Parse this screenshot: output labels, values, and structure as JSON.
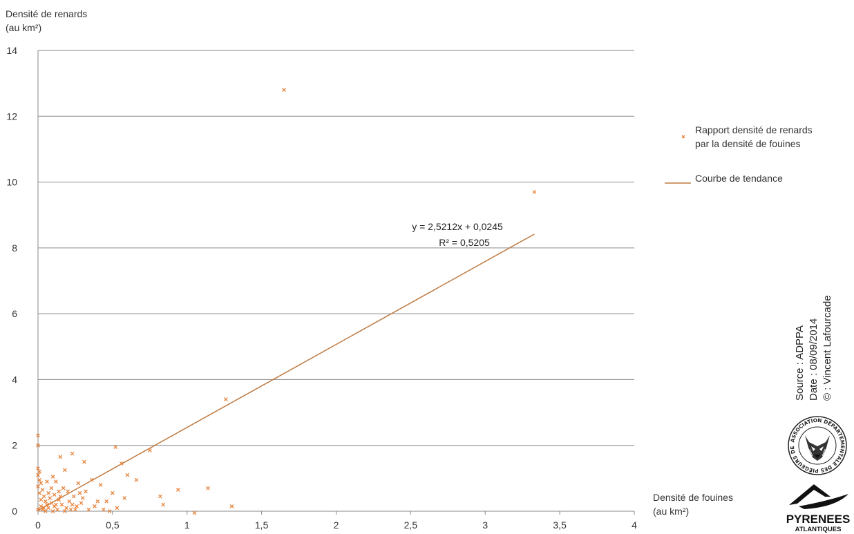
{
  "chart_data": {
    "type": "scatter",
    "ylabel": [
      "Densité de renards",
      "(au km²)"
    ],
    "xlabel": [
      "Densité de fouines",
      "(au km²)"
    ],
    "xlim": [
      0,
      4
    ],
    "ylim": [
      0,
      14
    ],
    "x_ticks": [
      "0",
      "0,5",
      "1",
      "1,5",
      "2",
      "2,5",
      "3",
      "3,5",
      "4"
    ],
    "y_ticks": [
      "0",
      "2",
      "4",
      "6",
      "8",
      "10",
      "12",
      "14"
    ],
    "grid": "horizontal",
    "legend_position": "right",
    "series": [
      {
        "name": [
          "Rapport densité de renards",
          "par la densité de fouines"
        ],
        "marker": "x",
        "color": "#E8823A",
        "points": [
          [
            1.65,
            12.8
          ],
          [
            3.33,
            9.7
          ],
          [
            1.26,
            3.4
          ],
          [
            0.0,
            2.3
          ],
          [
            0.0,
            2.0
          ],
          [
            0.52,
            1.95
          ],
          [
            0.23,
            1.75
          ],
          [
            0.15,
            1.65
          ],
          [
            0.75,
            1.85
          ],
          [
            0.56,
            1.45
          ],
          [
            0.31,
            1.5
          ],
          [
            0.6,
            1.1
          ],
          [
            0.66,
            0.95
          ],
          [
            0.1,
            1.05
          ],
          [
            0.12,
            0.9
          ],
          [
            0.18,
            1.25
          ],
          [
            0.27,
            0.85
          ],
          [
            0.36,
            0.95
          ],
          [
            0.42,
            0.8
          ],
          [
            0.5,
            0.55
          ],
          [
            0.46,
            0.3
          ],
          [
            0.94,
            0.65
          ],
          [
            1.14,
            0.7
          ],
          [
            0.82,
            0.45
          ],
          [
            0.84,
            0.2
          ],
          [
            1.3,
            0.15
          ],
          [
            1.05,
            -0.05
          ],
          [
            0.58,
            0.4
          ],
          [
            0.3,
            0.4
          ],
          [
            0.38,
            0.15
          ],
          [
            0.34,
            0.05
          ],
          [
            0.4,
            0.3
          ],
          [
            0.0,
            1.3
          ],
          [
            0.01,
            1.2
          ],
          [
            0.0,
            1.1
          ],
          [
            0.01,
            0.95
          ],
          [
            0.02,
            0.85
          ],
          [
            0.0,
            0.75
          ],
          [
            0.03,
            0.65
          ],
          [
            0.01,
            0.55
          ],
          [
            0.04,
            0.45
          ],
          [
            0.02,
            0.35
          ],
          [
            0.05,
            0.3
          ],
          [
            0.06,
            0.2
          ],
          [
            0.07,
            0.1
          ],
          [
            0.08,
            0.4
          ],
          [
            0.09,
            0.25
          ],
          [
            0.11,
            0.15
          ],
          [
            0.13,
            0.05
          ],
          [
            0.14,
            0.35
          ],
          [
            0.16,
            0.2
          ],
          [
            0.19,
            0.1
          ],
          [
            0.21,
            0.3
          ],
          [
            0.24,
            0.45
          ],
          [
            0.26,
            0.15
          ],
          [
            0.28,
            0.55
          ],
          [
            0.2,
            0.6
          ],
          [
            0.17,
            0.7
          ],
          [
            0.22,
            0.05
          ],
          [
            0.03,
            0.05
          ],
          [
            0.05,
            0.0
          ],
          [
            0.1,
            0.0
          ],
          [
            0.12,
            0.2
          ],
          [
            0.15,
            0.45
          ],
          [
            0.18,
            0.0
          ],
          [
            0.25,
            0.05
          ],
          [
            0.32,
            0.6
          ],
          [
            0.07,
            0.55
          ],
          [
            0.09,
            0.7
          ],
          [
            0.02,
            0.15
          ],
          [
            0.04,
            0.1
          ],
          [
            0.0,
            0.05
          ],
          [
            0.14,
            0.6
          ],
          [
            0.44,
            0.05
          ],
          [
            0.53,
            0.1
          ],
          [
            0.48,
            0.0
          ],
          [
            0.29,
            0.25
          ],
          [
            0.23,
            0.2
          ],
          [
            0.11,
            0.5
          ],
          [
            0.06,
            0.9
          ]
        ]
      },
      {
        "name": "Courbe de tendance",
        "type": "line",
        "color": "#C07A40",
        "points": [
          [
            0.0,
            0.0245
          ],
          [
            3.33,
            8.42
          ]
        ]
      }
    ],
    "annotations": [
      "y = 2,5212x + 0,0245",
      "R² = 0,5205"
    ]
  },
  "credits": [
    "Source : ADPPA",
    "Date : 08/09/2014",
    "© : Vincent Lafourcade"
  ],
  "logos": {
    "association_text": "ASSOCIATION DÉPARTEMENTALE DES PIÉGEURS DES PAYS DE L'ADOUR",
    "pyrenees_line1": "PYRENEES",
    "pyrenees_line2": "ATLANTIQUES"
  }
}
